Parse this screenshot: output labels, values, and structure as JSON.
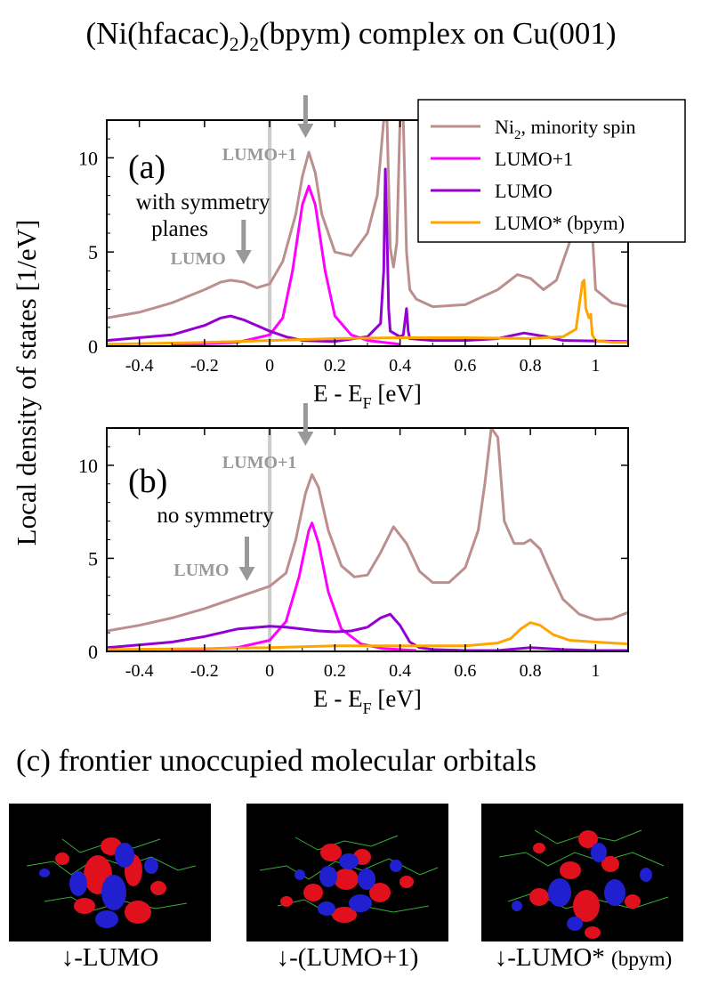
{
  "title": "(Ni(hfacac)2)2(bpym) complex on Cu(001)",
  "title_parts": {
    "pre": "(Ni(hfacac)",
    "sub1": "2",
    "mid": ")",
    "sub2": "2",
    "post": "(bpym) complex on Cu(001)"
  },
  "ylabel": "Local density of states [1/eV]",
  "chart_data": [
    {
      "panel": "a",
      "type": "line",
      "panel_label": "(a)",
      "annotation": "with symmetry planes",
      "xlabel": "E - E_F [eV]",
      "xlim": [
        -0.5,
        1.1
      ],
      "ylim": [
        0,
        12
      ],
      "xticks": [
        -0.4,
        -0.2,
        0,
        0.2,
        0.4,
        0.6,
        0.8,
        1
      ],
      "xtick_labels": [
        "-0.4",
        "-0.2",
        "0",
        "0.2",
        "0.4",
        "0.6",
        "0.8",
        "1"
      ],
      "yticks": [
        0,
        5,
        10
      ],
      "ytick_labels": [
        "0",
        "5",
        "10"
      ],
      "arrows": [
        {
          "label": "LUMO+1",
          "x": 0.11,
          "position": "top"
        },
        {
          "label": "LUMO",
          "x": -0.08,
          "position": "middle"
        }
      ],
      "legend": {
        "placement": "top-right",
        "entries": [
          {
            "label_main": "Ni",
            "label_sub": "2",
            "label_rest": ", minority spin",
            "color": "#bc8f8f"
          },
          {
            "label": "LUMO+1",
            "color": "#ff00ff"
          },
          {
            "label": "LUMO",
            "color": "#9400d3"
          },
          {
            "label": "LUMO* (bpym)",
            "color": "#ffa500"
          }
        ]
      },
      "series": [
        {
          "name": "Ni2, minority spin",
          "color": "#bc8f8f",
          "x": [
            -0.5,
            -0.4,
            -0.3,
            -0.2,
            -0.15,
            -0.12,
            -0.08,
            -0.04,
            0,
            0.04,
            0.08,
            0.1,
            0.12,
            0.14,
            0.16,
            0.2,
            0.25,
            0.3,
            0.33,
            0.35,
            0.36,
            0.37,
            0.38,
            0.39,
            0.4,
            0.41,
            0.42,
            0.43,
            0.45,
            0.5,
            0.6,
            0.7,
            0.76,
            0.8,
            0.84,
            0.88,
            0.92,
            0.95,
            0.97,
            1.0,
            1.05,
            1.1
          ],
          "y": [
            1.5,
            1.8,
            2.3,
            3.0,
            3.4,
            3.5,
            3.4,
            3.1,
            3.3,
            4.5,
            7.0,
            9.0,
            10.3,
            9.2,
            7.0,
            5.0,
            4.8,
            6.0,
            8.0,
            12.0,
            12.0,
            5.2,
            4.2,
            5.5,
            12.0,
            12.0,
            5.0,
            3.0,
            2.5,
            2.1,
            2.2,
            3.0,
            3.8,
            3.6,
            3.0,
            3.5,
            5.5,
            12.0,
            12.0,
            3.0,
            2.3,
            2.1
          ]
        },
        {
          "name": "LUMO+1",
          "color": "#ff00ff",
          "x": [
            -0.3,
            -0.1,
            0,
            0.04,
            0.07,
            0.1,
            0.12,
            0.14,
            0.17,
            0.2,
            0.25,
            0.3,
            0.4
          ],
          "y": [
            0.05,
            0.2,
            0.6,
            1.5,
            4.0,
            7.5,
            8.5,
            7.5,
            4.0,
            1.6,
            0.6,
            0.3,
            0.1
          ]
        },
        {
          "name": "LUMO",
          "color": "#9400d3",
          "x": [
            -0.5,
            -0.3,
            -0.2,
            -0.15,
            -0.12,
            -0.08,
            -0.04,
            0,
            0.05,
            0.1,
            0.2,
            0.3,
            0.34,
            0.35,
            0.355,
            0.36,
            0.365,
            0.37,
            0.4,
            0.41,
            0.42,
            0.425,
            0.43,
            0.5,
            0.6,
            0.7,
            0.78,
            0.85,
            0.9,
            1.1
          ],
          "y": [
            0.3,
            0.6,
            1.1,
            1.5,
            1.6,
            1.4,
            1.1,
            0.8,
            0.5,
            0.3,
            0.25,
            0.5,
            1.2,
            4.0,
            9.4,
            6.0,
            2.0,
            0.8,
            0.5,
            0.6,
            2.0,
            0.8,
            0.4,
            0.3,
            0.3,
            0.4,
            0.7,
            0.5,
            0.3,
            0.25
          ]
        },
        {
          "name": "LUMO* (bpym)",
          "color": "#ffa500",
          "x": [
            -0.5,
            -0.2,
            0,
            0.2,
            0.4,
            0.6,
            0.8,
            0.9,
            0.94,
            0.96,
            0.965,
            0.97,
            0.98,
            0.985,
            0.99,
            1.0,
            1.05,
            1.1
          ],
          "y": [
            0.1,
            0.2,
            0.3,
            0.4,
            0.45,
            0.45,
            0.4,
            0.5,
            0.9,
            3.4,
            3.5,
            2.0,
            1.5,
            1.7,
            0.6,
            0.3,
            0.2,
            0.2
          ]
        }
      ]
    },
    {
      "panel": "b",
      "type": "line",
      "panel_label": "(b)",
      "annotation": "no symmetry",
      "xlabel": "E - E_F [eV]",
      "xlim": [
        -0.5,
        1.1
      ],
      "ylim": [
        0,
        12
      ],
      "xticks": [
        -0.4,
        -0.2,
        0,
        0.2,
        0.4,
        0.6,
        0.8,
        1
      ],
      "xtick_labels": [
        "-0.4",
        "-0.2",
        "0",
        "0.2",
        "0.4",
        "0.6",
        "0.8",
        "1"
      ],
      "yticks": [
        0,
        5,
        10
      ],
      "ytick_labels": [
        "0",
        "5",
        "10"
      ],
      "arrows": [
        {
          "label": "LUMO+1",
          "x": 0.11,
          "position": "top"
        },
        {
          "label": "LUMO",
          "x": -0.07,
          "position": "middle"
        }
      ],
      "series": [
        {
          "name": "Ni2, minority spin",
          "color": "#bc8f8f",
          "x": [
            -0.5,
            -0.4,
            -0.3,
            -0.2,
            -0.1,
            -0.05,
            0,
            0.05,
            0.08,
            0.11,
            0.13,
            0.15,
            0.18,
            0.22,
            0.26,
            0.3,
            0.34,
            0.38,
            0.42,
            0.46,
            0.5,
            0.55,
            0.6,
            0.64,
            0.66,
            0.68,
            0.7,
            0.72,
            0.75,
            0.78,
            0.8,
            0.83,
            0.86,
            0.9,
            0.95,
            1.0,
            1.05,
            1.1
          ],
          "y": [
            1.1,
            1.4,
            1.8,
            2.3,
            2.9,
            3.2,
            3.5,
            4.2,
            6.0,
            8.5,
            9.5,
            8.8,
            6.5,
            4.6,
            4.0,
            4.1,
            5.3,
            6.7,
            5.8,
            4.3,
            3.7,
            3.7,
            4.5,
            6.5,
            9.0,
            12.0,
            11.5,
            7.0,
            5.8,
            5.8,
            6.0,
            5.5,
            4.3,
            2.8,
            2.0,
            1.7,
            1.75,
            2.1
          ]
        },
        {
          "name": "LUMO+1",
          "color": "#ff00ff",
          "x": [
            -0.3,
            -0.1,
            0,
            0.05,
            0.09,
            0.12,
            0.13,
            0.15,
            0.18,
            0.22,
            0.28,
            0.35,
            0.45
          ],
          "y": [
            0.05,
            0.2,
            0.6,
            1.6,
            4.0,
            6.5,
            6.9,
            5.8,
            3.2,
            1.2,
            0.4,
            0.15,
            0.05
          ]
        },
        {
          "name": "LUMO",
          "color": "#9400d3",
          "x": [
            -0.5,
            -0.3,
            -0.2,
            -0.1,
            0,
            0.05,
            0.1,
            0.15,
            0.2,
            0.25,
            0.3,
            0.34,
            0.37,
            0.4,
            0.43,
            0.46,
            0.5,
            0.6,
            0.7,
            0.8,
            0.9,
            1.0,
            1.1
          ],
          "y": [
            0.2,
            0.5,
            0.8,
            1.2,
            1.35,
            1.3,
            1.2,
            1.1,
            1.05,
            1.1,
            1.3,
            1.8,
            2.0,
            1.4,
            0.5,
            0.2,
            0.1,
            0.05,
            0.05,
            0.2,
            0.1,
            0.05,
            0.05
          ]
        },
        {
          "name": "LUMO* (bpym)",
          "color": "#ffa500",
          "x": [
            -0.5,
            -0.2,
            0,
            0.2,
            0.4,
            0.6,
            0.7,
            0.74,
            0.77,
            0.8,
            0.83,
            0.87,
            0.92,
            1.0,
            1.1
          ],
          "y": [
            0.1,
            0.15,
            0.2,
            0.3,
            0.3,
            0.3,
            0.45,
            0.7,
            1.2,
            1.55,
            1.4,
            0.9,
            0.6,
            0.5,
            0.4
          ]
        }
      ]
    }
  ],
  "section_c": {
    "title": "(c) frontier unoccupied molecular orbitals"
  },
  "orbitals": [
    {
      "arrow": "↓",
      "label": "-LUMO",
      "label_small": ""
    },
    {
      "arrow": "↓",
      "label": "-(LUMO+1)",
      "label_small": ""
    },
    {
      "arrow": "↓",
      "label": "-LUMO* ",
      "label_small": "(bpym)"
    }
  ],
  "colors": {
    "lobe_red": "#e0101c",
    "lobe_blue": "#2020d0",
    "bond_green": "#40c040",
    "grey_annot": "#999999",
    "fermi_line": "#cccccc"
  }
}
